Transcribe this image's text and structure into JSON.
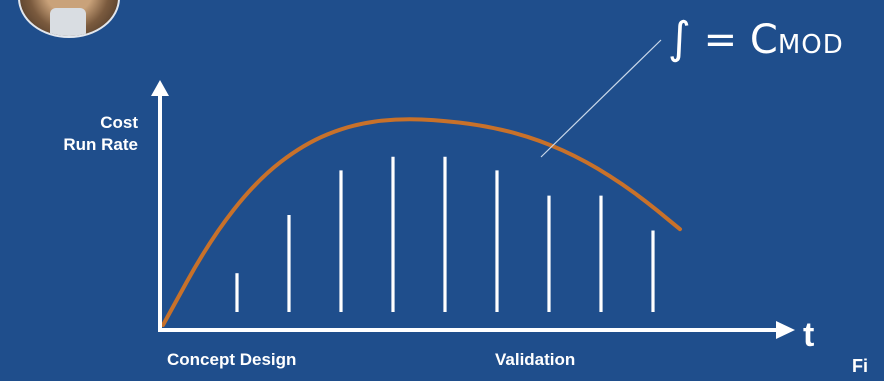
{
  "formula": {
    "integral_symbol": "∫",
    "equals": "=",
    "c": "C",
    "subscript": "MOD"
  },
  "chart_data": {
    "type": "bar",
    "ylabel": "Cost\nRun Rate",
    "xlabel": "t",
    "phase_labels": [
      "Concept Design",
      "Validation"
    ],
    "values": [
      20,
      50,
      73,
      80,
      80,
      73,
      60,
      60,
      42
    ],
    "curve": {
      "x": [
        0,
        1,
        2,
        3,
        4,
        5,
        6,
        7,
        8,
        9,
        10,
        11
      ],
      "y": [
        0,
        40,
        68,
        85,
        94,
        97,
        96,
        93,
        87,
        77,
        63,
        45
      ]
    },
    "ylim": [
      0,
      100
    ],
    "colors": {
      "curve": "#c8712a",
      "bars": "#ffffff",
      "axis": "#ffffff",
      "background": "#1f4e8c"
    }
  },
  "corner_text": "Fi"
}
